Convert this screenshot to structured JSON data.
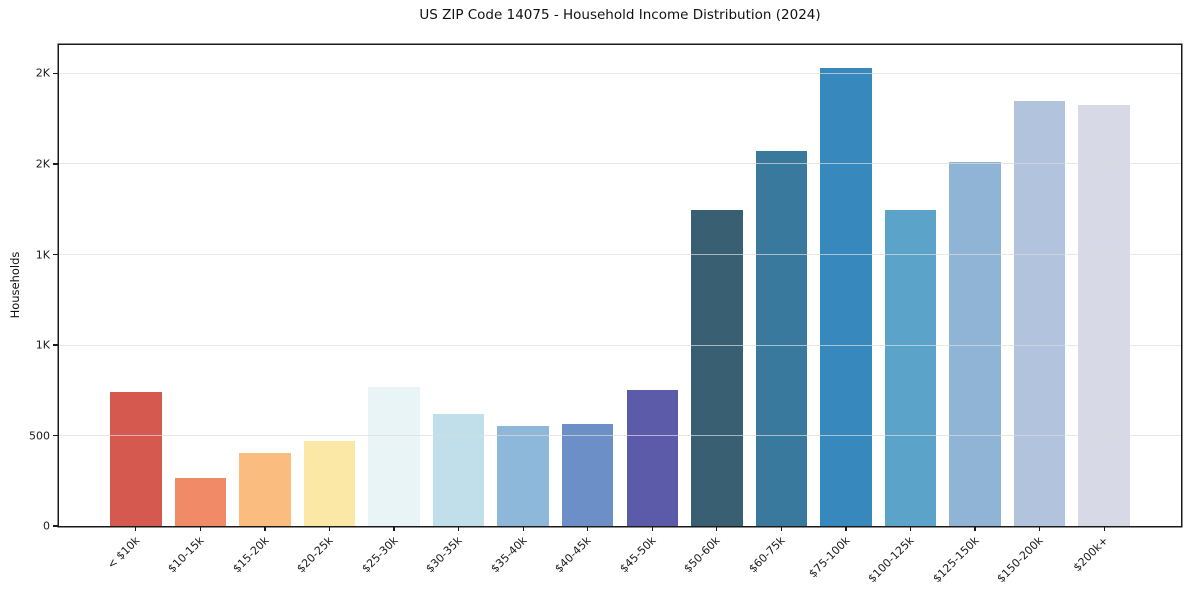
{
  "chart_data": {
    "type": "bar",
    "title": "US ZIP Code 14075 - Household Income Distribution (2024)",
    "xlabel": "",
    "ylabel": "Households",
    "categories": [
      "< $10k",
      "$10-15k",
      "$15-20k",
      "$20-25k",
      "$25-30k",
      "$30-35k",
      "$35-40k",
      "$40-45k",
      "$45-50k",
      "$50-60k",
      "$60-75k",
      "$75-100k",
      "$100-125k",
      "$125-150k",
      "$150-200k",
      "$200k+"
    ],
    "values": [
      740,
      265,
      405,
      470,
      770,
      620,
      555,
      565,
      750,
      1745,
      2070,
      2530,
      1745,
      2010,
      2350,
      2325
    ],
    "bar_colors": [
      "#d5594e",
      "#f18a67",
      "#fbbc80",
      "#fce8a6",
      "#e8f4f6",
      "#c0dfeb",
      "#8db8da",
      "#6b8fc6",
      "#5b5baa",
      "#395f72",
      "#38799d",
      "#3789bd",
      "#5ba3c8",
      "#90b4d6",
      "#b2c3dd",
      "#d7dae6"
    ],
    "ylim": [
      0,
      2657
    ],
    "yticks": {
      "values": [
        0,
        500,
        1000,
        1500,
        2000,
        2500
      ],
      "labels": [
        "0",
        "500",
        "1K",
        "1K",
        "2K",
        "2K"
      ]
    },
    "grid": "horizontal",
    "legend": "none",
    "x_tick_rotation": 45,
    "bar_width_fraction": 0.8
  }
}
